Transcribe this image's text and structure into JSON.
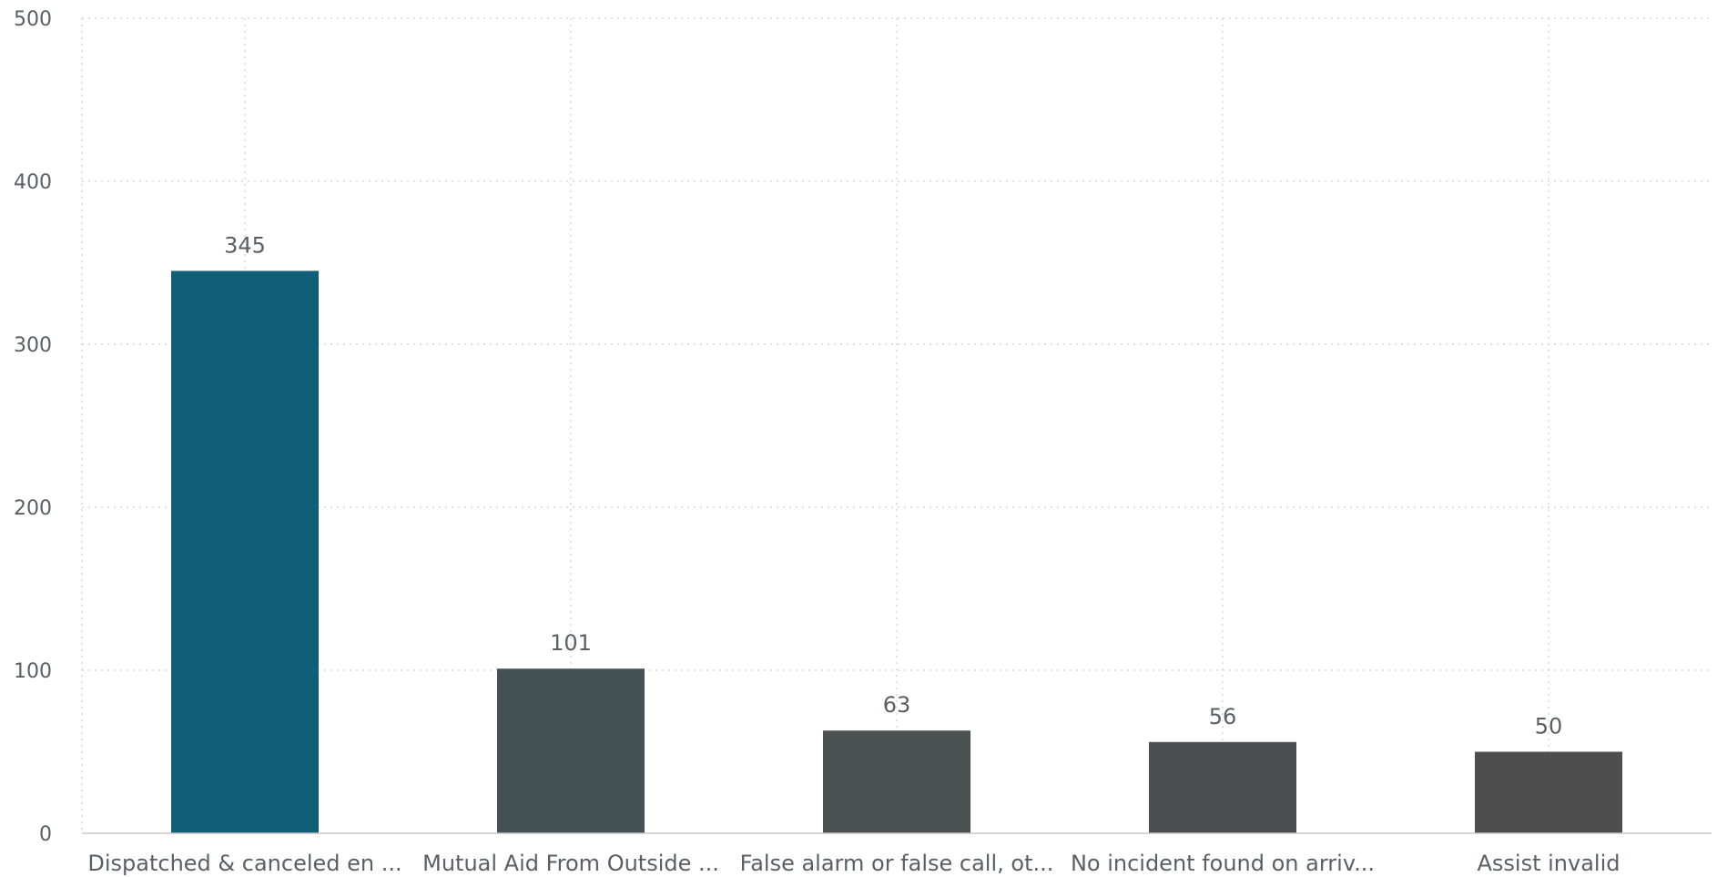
{
  "chart_data": {
    "type": "bar",
    "categories": [
      "Dispatched & canceled en ...",
      "Mutual Aid From Outside ...",
      "False alarm or false call, ot...",
      "No incident found on arriv...",
      "Assist invalid"
    ],
    "values": [
      345,
      101,
      63,
      56,
      50
    ],
    "bar_colors": [
      "#115e78",
      "#445256",
      "#4b5050",
      "#4d4e50",
      "#4e4e4e"
    ],
    "yticks": [
      0,
      100,
      200,
      300,
      400,
      500
    ],
    "ylim": [
      0,
      500
    ],
    "grid": true,
    "title": "",
    "xlabel": "",
    "ylabel": ""
  }
}
